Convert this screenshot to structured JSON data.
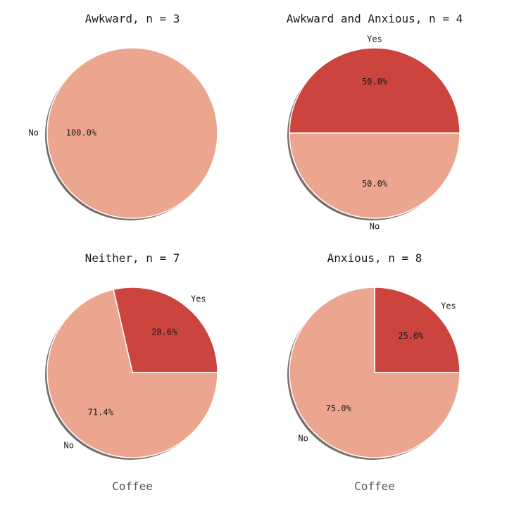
{
  "colors": {
    "Yes": "#cb443e",
    "No": "#eca690",
    "edge": "#ffffff",
    "shadow": "#7a6e6c"
  },
  "chart_data": [
    {
      "type": "pie",
      "title": "Awkward, n = 3",
      "xlabel": "",
      "categories": [
        "Yes",
        "No"
      ],
      "values": [
        0,
        3
      ],
      "slice_labels": [
        "",
        "No"
      ],
      "pct_labels": [
        "",
        "100.0%"
      ]
    },
    {
      "type": "pie",
      "title": "Awkward and Anxious, n = 4",
      "xlabel": "",
      "categories": [
        "Yes",
        "No"
      ],
      "values": [
        2,
        2
      ],
      "slice_labels": [
        "Yes",
        "No"
      ],
      "pct_labels": [
        "50.0%",
        "50.0%"
      ]
    },
    {
      "type": "pie",
      "title": "Neither, n = 7",
      "xlabel": "Coffee",
      "categories": [
        "Yes",
        "No"
      ],
      "values": [
        2,
        5
      ],
      "slice_labels": [
        "Yes",
        "No"
      ],
      "pct_labels": [
        "28.6%",
        "71.4%"
      ]
    },
    {
      "type": "pie",
      "title": "Anxious, n = 8",
      "xlabel": "Coffee",
      "categories": [
        "Yes",
        "No"
      ],
      "values": [
        2,
        6
      ],
      "slice_labels": [
        "Yes",
        "No"
      ],
      "pct_labels": [
        "25.0%",
        "75.0%"
      ]
    }
  ]
}
